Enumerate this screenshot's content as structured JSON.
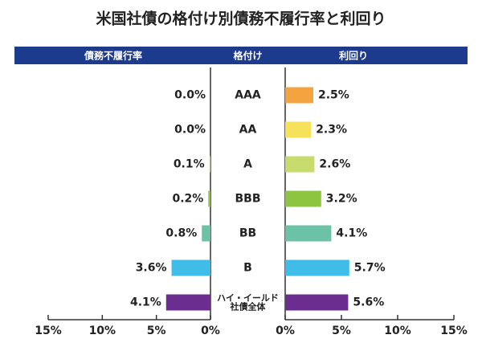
{
  "chart_data": {
    "type": "butterfly_bar",
    "title": "米国社債の格付け別債務不履行率と利回り",
    "categories_label": "格付け",
    "categories": [
      "AAA",
      "AA",
      "A",
      "BBB",
      "BB",
      "B",
      "ハイ・イールド\n社債全体"
    ],
    "colors": [
      "#f4a340",
      "#f6e25a",
      "#c7dc6c",
      "#8dc540",
      "#6cc2a6",
      "#3fbde8",
      "#6b2d90"
    ],
    "header_color": "#1d3b8c",
    "series": [
      {
        "name": "債務不履行率",
        "side": "left",
        "values": [
          0.0,
          0.0,
          0.1,
          0.2,
          0.8,
          3.6,
          4.1
        ],
        "value_labels": [
          "0.0%",
          "0.0%",
          "0.1%",
          "0.2%",
          "0.8%",
          "3.6%",
          "4.1%"
        ],
        "xlim": [
          0,
          15
        ],
        "xticks": [
          {
            "value": 15,
            "label": "15%"
          },
          {
            "value": 10,
            "label": "10%"
          },
          {
            "value": 5,
            "label": "5%"
          },
          {
            "value": 0,
            "label": "0%"
          }
        ]
      },
      {
        "name": "利回り",
        "side": "right",
        "values": [
          2.5,
          2.3,
          2.6,
          3.2,
          4.1,
          5.7,
          5.6
        ],
        "value_labels": [
          "2.5%",
          "2.3%",
          "2.6%",
          "3.2%",
          "4.1%",
          "5.7%",
          "5.6%"
        ],
        "xlim": [
          0,
          15
        ],
        "xticks": [
          {
            "value": 0,
            "label": "0%"
          },
          {
            "value": 5,
            "label": "5%"
          },
          {
            "value": 10,
            "label": "10%"
          },
          {
            "value": 15,
            "label": "15%"
          }
        ]
      }
    ]
  }
}
